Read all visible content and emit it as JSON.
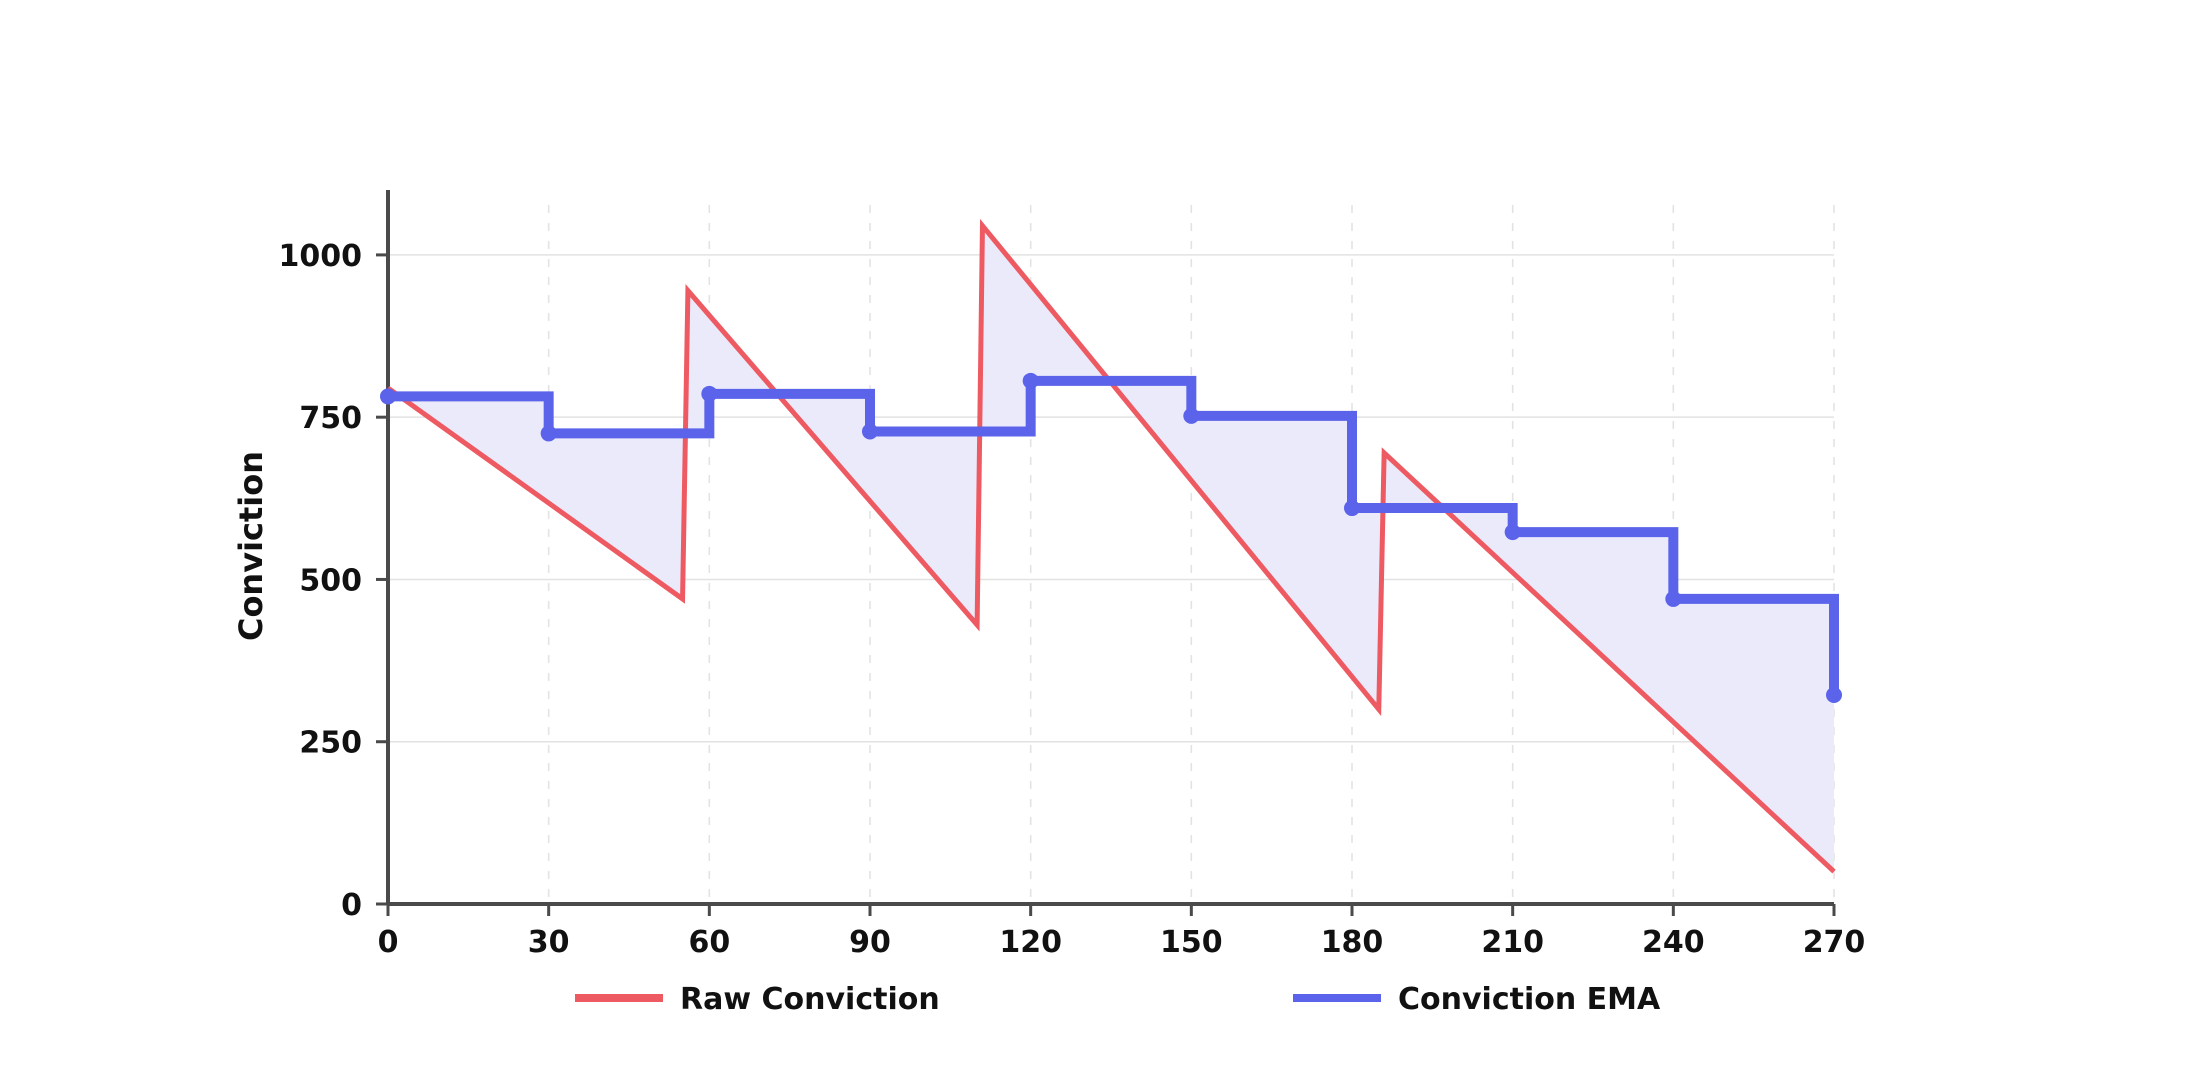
{
  "chart_data": {
    "type": "line",
    "title": "",
    "xlabel": "",
    "ylabel": "Conviction",
    "xlim": [
      0,
      270
    ],
    "ylim": [
      0,
      1100
    ],
    "x_ticks": [
      0,
      30,
      60,
      90,
      120,
      150,
      180,
      210,
      240,
      270
    ],
    "y_ticks": [
      0,
      250,
      500,
      750,
      1000
    ],
    "grid": true,
    "legend_position": "bottom",
    "colors": {
      "raw": "#ee5a62",
      "ema": "#5b63ea",
      "fill": "#ebeafb",
      "axis": "#4a4a4a",
      "grid": "#e2e2e2"
    },
    "series": [
      {
        "name": "Raw Conviction",
        "style": "line",
        "points": [
          [
            0,
            795
          ],
          [
            55,
            470
          ],
          [
            56,
            945
          ],
          [
            110,
            430
          ],
          [
            111,
            1045
          ],
          [
            185,
            300
          ],
          [
            186,
            695
          ],
          [
            270,
            50
          ]
        ]
      },
      {
        "name": "Conviction EMA",
        "style": "step-after",
        "points": [
          [
            0,
            782
          ],
          [
            30,
            725
          ],
          [
            60,
            786
          ],
          [
            90,
            728
          ],
          [
            120,
            806
          ],
          [
            150,
            752
          ],
          [
            180,
            610
          ],
          [
            210,
            573
          ],
          [
            240,
            470
          ],
          [
            270,
            322
          ]
        ]
      }
    ]
  }
}
